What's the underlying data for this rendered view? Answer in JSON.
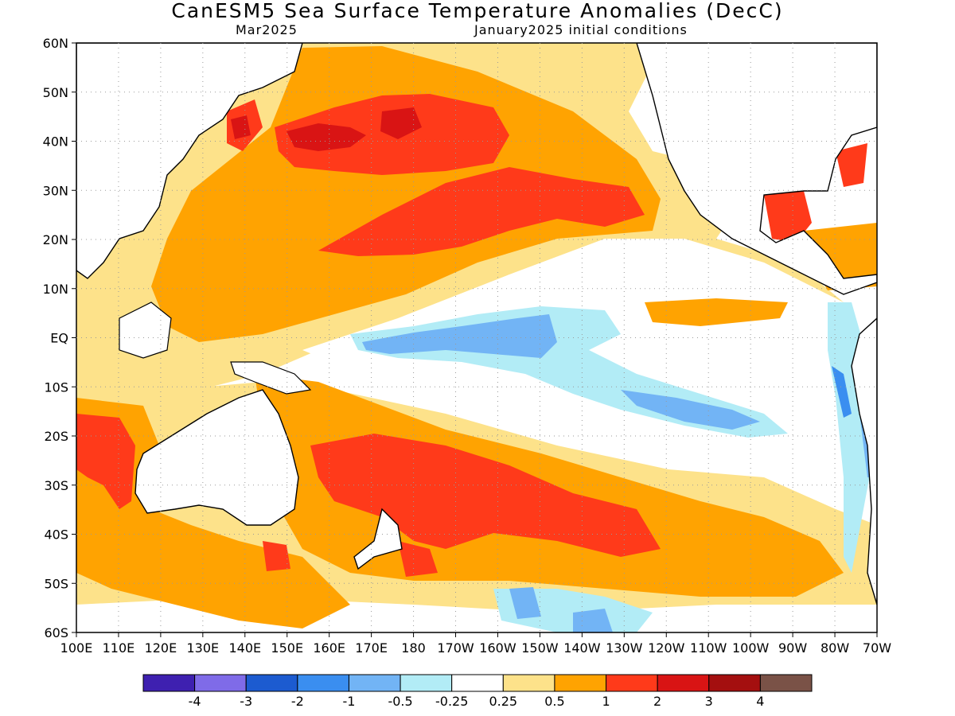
{
  "title": "CanESM5 Sea Surface Temperature Anomalies (DecC)",
  "subtitle_left": "Mar2025",
  "subtitle_right": "January2025 initial conditions",
  "lat_labels": [
    "60N",
    "50N",
    "40N",
    "30N",
    "20N",
    "10N",
    "EQ",
    "10S",
    "20S",
    "30S",
    "40S",
    "50S",
    "60S"
  ],
  "lon_labels": [
    "100E",
    "110E",
    "120E",
    "130E",
    "140E",
    "150E",
    "160E",
    "170E",
    "180",
    "170W",
    "160W",
    "150W",
    "140W",
    "130W",
    "120W",
    "110W",
    "100W",
    "90W",
    "80W",
    "70W"
  ],
  "colorbar": {
    "colors": [
      "#3e20b0",
      "#7f6be8",
      "#1c5bd0",
      "#3a8ef0",
      "#72b4f5",
      "#b2ecf6",
      "#ffffff",
      "#fde28a",
      "#ffa301",
      "#ff3a1a",
      "#d91414",
      "#a40f0f",
      "#7a5247"
    ],
    "labels": [
      "-4",
      "-3",
      "-2",
      "-1",
      "-0.5",
      "-0.25",
      "0.25",
      "0.5",
      "1",
      "2",
      "3",
      "4"
    ]
  }
}
